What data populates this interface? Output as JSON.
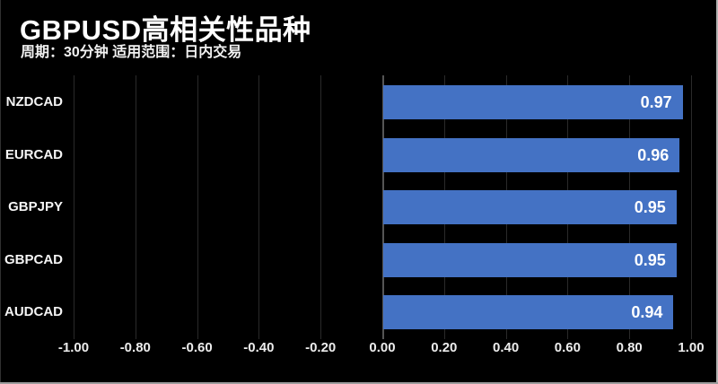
{
  "header": {
    "title": "GBPUSD高相关性品种",
    "subtitle": "周期：30分钟 适用范围：日内交易"
  },
  "chart_data": {
    "type": "bar",
    "orientation": "horizontal",
    "title": "GBPUSD高相关性品种",
    "subtitle": "周期：30分钟 适用范围：日内交易",
    "categories": [
      "NZDCAD",
      "EURCAD",
      "GBPJPY",
      "GBPCAD",
      "AUDCAD"
    ],
    "values": [
      0.97,
      0.96,
      0.95,
      0.95,
      0.94
    ],
    "value_labels": [
      "0.97",
      "0.96",
      "0.95",
      "0.95",
      "0.94"
    ],
    "xlim": [
      -1.0,
      1.0
    ],
    "x_ticks": [
      -1.0,
      -0.8,
      -0.6,
      -0.4,
      -0.2,
      0.0,
      0.2,
      0.4,
      0.6,
      0.8,
      1.0
    ],
    "x_tick_labels": [
      "-1.00",
      "-0.80",
      "-0.60",
      "-0.40",
      "-0.20",
      "0.00",
      "0.20",
      "0.40",
      "0.60",
      "0.80",
      "1.00"
    ],
    "grid": "vertical",
    "legend": "none",
    "colors": {
      "background": "#000000",
      "bar": "#4472c4",
      "gridline": "#2a2a2a",
      "zero_line": "#555555",
      "text": "#ffffff"
    }
  }
}
